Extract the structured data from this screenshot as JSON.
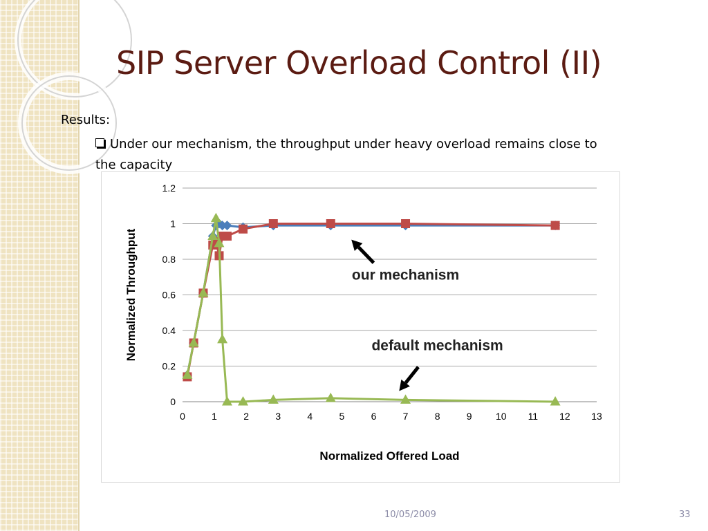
{
  "slide": {
    "title": "SIP Server Overload Control (II)",
    "results_label": "Results:",
    "bullet_text": "Under our mechanism, the throughput under heavy overload remains close to the capacity",
    "footer_date": "10/05/2009",
    "footer_page": "33"
  },
  "chart_data": {
    "type": "line",
    "title": "",
    "xlabel": "Normalized Offered Load",
    "ylabel": "Normalized Throughput",
    "xlim": [
      0,
      13
    ],
    "ylim": [
      0,
      1.2
    ],
    "x_ticks": [
      0,
      1,
      2,
      3,
      4,
      5,
      6,
      7,
      8,
      9,
      10,
      11,
      12,
      13
    ],
    "y_ticks": [
      0,
      0.2,
      0.4,
      0.6,
      0.8,
      1,
      1.2
    ],
    "y_tick_labels": [
      "0",
      "0.2",
      "0.4",
      "0.6",
      "0.8",
      "1",
      "1.2"
    ],
    "grid": "horizontal",
    "colors": {
      "blue": "#4a7ebb",
      "red": "#be4b48",
      "green": "#98b954"
    },
    "series": [
      {
        "color": "#4a7ebb",
        "marker": "diamond",
        "x": [
          0.15,
          0.35,
          0.65,
          0.95,
          1.05,
          1.15,
          1.25,
          1.4,
          1.9,
          2.85,
          4.65,
          7.0,
          11.7
        ],
        "y": [
          0.15,
          0.33,
          0.61,
          0.93,
          0.99,
          1.0,
          0.99,
          0.99,
          0.98,
          0.99,
          0.99,
          0.99,
          0.99
        ]
      },
      {
        "color": "#be4b48",
        "marker": "square",
        "x": [
          0.15,
          0.35,
          0.65,
          0.95,
          1.05,
          1.15,
          1.25,
          1.4,
          1.9,
          2.85,
          4.65,
          7.0,
          11.7
        ],
        "y": [
          0.14,
          0.33,
          0.61,
          0.88,
          0.9,
          0.82,
          0.93,
          0.93,
          0.97,
          1.0,
          1.0,
          1.0,
          0.99
        ]
      },
      {
        "color": "#98b954",
        "marker": "triangle",
        "x": [
          0.15,
          0.35,
          0.65,
          0.95,
          1.05,
          1.15,
          1.25,
          1.4,
          1.9,
          2.85,
          4.65,
          7.0,
          11.7
        ],
        "y": [
          0.15,
          0.33,
          0.61,
          0.93,
          1.03,
          0.89,
          0.35,
          0.0,
          0.0,
          0.01,
          0.02,
          0.01,
          0.0
        ]
      }
    ],
    "annotations": [
      {
        "text": "our mechanism",
        "x": 7.0,
        "y": 0.685,
        "arrow_from": [
          6.0,
          0.78
        ],
        "arrow_to": [
          5.3,
          0.91
        ]
      },
      {
        "text": "default mechanism",
        "x": 8.0,
        "y": 0.29,
        "arrow_from": [
          7.4,
          0.195
        ],
        "arrow_to": [
          6.8,
          0.06
        ]
      }
    ]
  }
}
